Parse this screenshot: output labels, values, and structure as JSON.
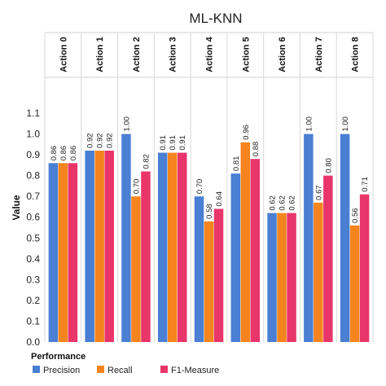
{
  "chart_data": {
    "type": "bar",
    "title": "ML-KNN",
    "ylabel": "Value",
    "ylim": [
      0,
      1.1
    ],
    "yticks": [
      "0.0",
      "0.1",
      "0.2",
      "0.3",
      "0.4",
      "0.5",
      "0.6",
      "0.7",
      "0.8",
      "0.9",
      "1.0",
      "1.1"
    ],
    "categories": [
      "Action 0",
      "Action 1",
      "Action 2",
      "Action 3",
      "Action 4",
      "Action 5",
      "Action 6",
      "Action 7",
      "Action 8"
    ],
    "legend_title": "Performance",
    "legend_position": "bottom-left",
    "grid": "vertical separators",
    "series": [
      {
        "name": "Precision",
        "color": "#4a7fd4",
        "values": [
          0.86,
          0.92,
          1.0,
          0.91,
          0.7,
          0.81,
          0.62,
          1.0,
          1.0
        ],
        "labels": [
          "0.86",
          "0.92",
          "1.00",
          "0.91",
          "0.70",
          "0.81",
          "0.62",
          "1.00",
          "1.00"
        ]
      },
      {
        "name": "Recall",
        "color": "#f5841f",
        "values": [
          0.86,
          0.92,
          0.7,
          0.91,
          0.58,
          0.96,
          0.62,
          0.67,
          0.56
        ],
        "labels": [
          "0.86",
          "0.92",
          "0.70",
          "0.91",
          "0.58",
          "0.96",
          "0.62",
          "0.67",
          "0.56"
        ]
      },
      {
        "name": "F1-Measure",
        "color": "#e8356a",
        "values": [
          0.86,
          0.92,
          0.82,
          0.91,
          0.64,
          0.88,
          0.62,
          0.8,
          0.71
        ],
        "labels": [
          "0.86",
          "0.92",
          "0.82",
          "0.91",
          "0.64",
          "0.88",
          "0.62",
          "0.80",
          "0.71"
        ]
      }
    ]
  }
}
